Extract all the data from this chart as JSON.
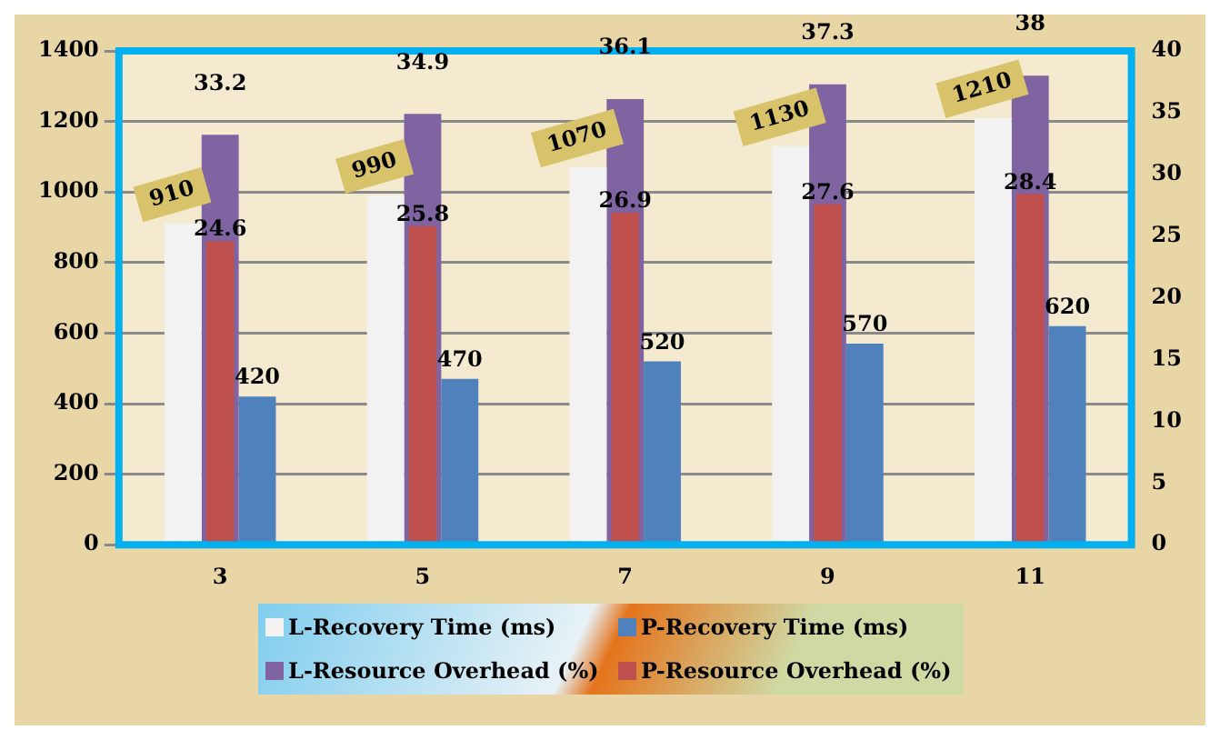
{
  "chart_data": {
    "type": "bar",
    "categories": [
      "3",
      "5",
      "7",
      "9",
      "11"
    ],
    "series": [
      {
        "name": "L-Recovery Time (ms)",
        "color": "#f2f2f2",
        "values": [
          910,
          990,
          1070,
          1130,
          1210
        ]
      },
      {
        "name": "L-Resource Overhead (%)",
        "color": "#8064a2",
        "values": [
          33.2,
          34.9,
          36.1,
          37.3,
          38
        ],
        "axis": "y2"
      },
      {
        "name": "P-Resource Overhead (%)",
        "color": "#c0504d",
        "values": [
          24.6,
          25.8,
          26.9,
          27.6,
          28.4
        ],
        "axis": "y2"
      },
      {
        "name": "P-Recovery Time (ms)",
        "color": "#4f81bd",
        "values": [
          420,
          470,
          520,
          570,
          620
        ]
      }
    ],
    "ylim": [
      0,
      1400
    ],
    "yticks": [
      0,
      200,
      400,
      600,
      800,
      1000,
      1200,
      1400
    ],
    "y2lim": [
      0,
      40
    ],
    "y2ticks": [
      0,
      5,
      10,
      15,
      20,
      25,
      30,
      35,
      40
    ],
    "grid": "y",
    "legend": "bottom",
    "data_labels": true
  }
}
